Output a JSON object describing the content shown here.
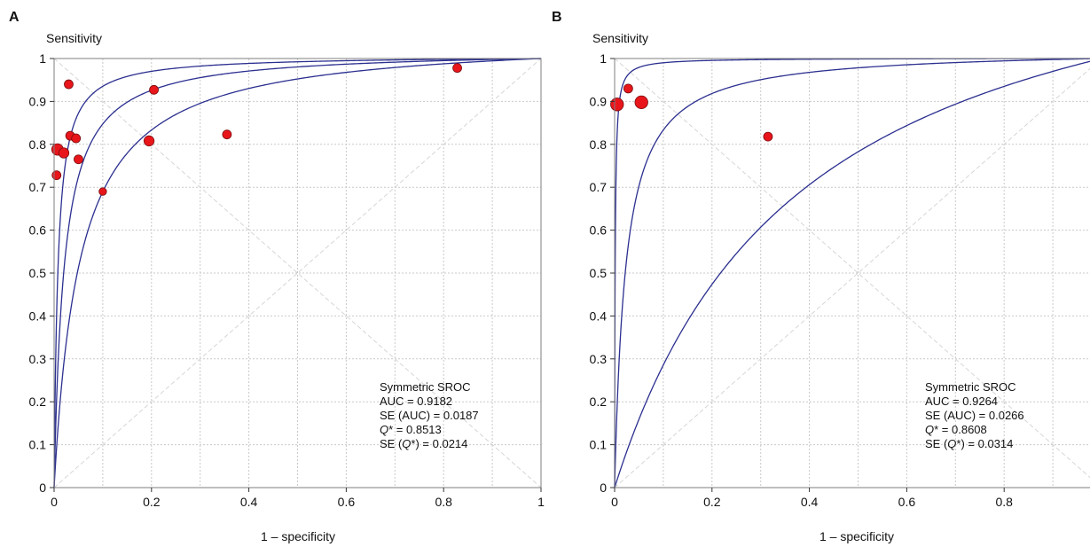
{
  "chart_data": [
    {
      "panel_label": "A",
      "type": "scatter",
      "xlabel": "1 – specificity",
      "ylabel": "Sensitivity",
      "xlim": [
        0,
        1
      ],
      "ylim": [
        0,
        1
      ],
      "x_ticks": [
        "0",
        "0.2",
        "0.4",
        "0.6",
        "0.8",
        "1"
      ],
      "y_ticks": [
        "0",
        "0.1",
        "0.2",
        "0.3",
        "0.4",
        "0.5",
        "0.6",
        "0.7",
        "0.8",
        "0.9",
        "1"
      ],
      "grid": true,
      "point_color": "#e8161b",
      "curve_color": "#2b2f8f",
      "points": [
        {
          "x": 0.005,
          "y": 0.728,
          "w": 4
        },
        {
          "x": 0.007,
          "y": 0.788,
          "w": 6
        },
        {
          "x": 0.02,
          "y": 0.78,
          "w": 5
        },
        {
          "x": 0.03,
          "y": 0.94,
          "w": 4
        },
        {
          "x": 0.033,
          "y": 0.82,
          "w": 4
        },
        {
          "x": 0.045,
          "y": 0.814,
          "w": 4
        },
        {
          "x": 0.05,
          "y": 0.765,
          "w": 4
        },
        {
          "x": 0.1,
          "y": 0.69,
          "w": 3
        },
        {
          "x": 0.195,
          "y": 0.808,
          "w": 5
        },
        {
          "x": 0.205,
          "y": 0.927,
          "w": 4
        },
        {
          "x": 0.355,
          "y": 0.823,
          "w": 4
        },
        {
          "x": 0.828,
          "y": 0.978,
          "w": 4
        }
      ],
      "curves_dor": [
        130,
        50,
        20
      ],
      "stats": {
        "heading": "Symmetric SROC",
        "auc": "AUC = 0.9182",
        "se_auc": "SE (AUC) = 0.0187",
        "q_symbol": "Q",
        "q_value": "* = 0.8513",
        "se_q_prefix": "SE (",
        "se_q_symbol": "Q",
        "se_q_suffix": "*) = 0.0214"
      }
    },
    {
      "panel_label": "B",
      "type": "scatter",
      "xlabel": "1 – specificity",
      "ylabel": "Sensitivity",
      "xlim": [
        0,
        1
      ],
      "ylim": [
        0,
        1
      ],
      "x_ticks": [
        "0",
        "0.2",
        "0.4",
        "0.6",
        "0.8"
      ],
      "y_ticks": [
        "0",
        "0.1",
        "0.2",
        "0.3",
        "0.4",
        "0.5",
        "0.6",
        "0.7",
        "0.8",
        "0.9",
        "1"
      ],
      "grid": true,
      "point_color": "#e8161b",
      "curve_color": "#2b2f8f",
      "points": [
        {
          "x": 0.005,
          "y": 0.893,
          "w": 7
        },
        {
          "x": 0.028,
          "y": 0.93,
          "w": 4
        },
        {
          "x": 0.055,
          "y": 0.898,
          "w": 7
        },
        {
          "x": 0.315,
          "y": 0.818,
          "w": 4
        }
      ],
      "curves_dor": [
        900,
        45,
        3.6
      ],
      "stats": {
        "heading": "Symmetric SROC",
        "auc": "AUC = 0.9264",
        "se_auc": "SE (AUC) = 0.0266",
        "q_symbol": "Q",
        "q_value": "* = 0.8608",
        "se_q_prefix": "SE (",
        "se_q_symbol": "Q",
        "se_q_suffix": "*) = 0.0314"
      }
    }
  ]
}
